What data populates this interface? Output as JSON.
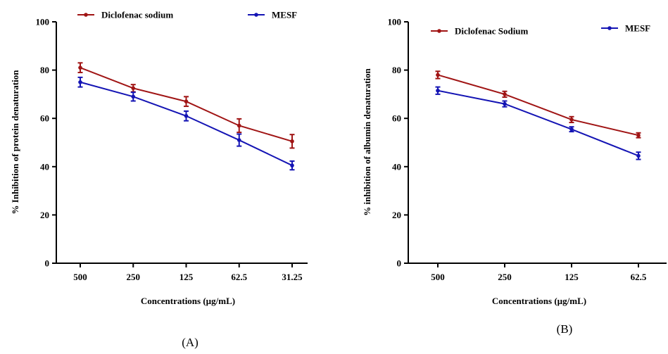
{
  "chart_data": [
    {
      "type": "line",
      "panel_label": "(A)",
      "xlabel": "Concentrations (µg/mL)",
      "ylabel": "% Inhibition of protein denaturation",
      "categories": [
        "500",
        "250",
        "125",
        "62.5",
        "31.25"
      ],
      "ylim": [
        0,
        100
      ],
      "yticks": [
        "0",
        "20",
        "40",
        "60",
        "80",
        "100"
      ],
      "grid": false,
      "legend_position": "top",
      "series": [
        {
          "name": "Diclofenac sodium",
          "color": "#A01414",
          "values": [
            81,
            72.5,
            67,
            57,
            50.5
          ],
          "errors": [
            2.0,
            1.5,
            2.0,
            2.8,
            2.8
          ]
        },
        {
          "name": "MESF",
          "color": "#1414B4",
          "values": [
            75,
            69,
            61,
            51,
            40.5
          ],
          "errors": [
            2.0,
            1.8,
            2.0,
            2.5,
            1.8
          ]
        }
      ]
    },
    {
      "type": "line",
      "panel_label": "(B)",
      "xlabel": "Concentrations (µg/mL)",
      "ylabel": "%  inhibition of albumin denaturation",
      "categories": [
        "500",
        "250",
        "125",
        "62.5"
      ],
      "ylim": [
        0,
        100
      ],
      "yticks": [
        "0",
        "20",
        "40",
        "60",
        "80",
        "100"
      ],
      "grid": false,
      "legend_position": "top",
      "series": [
        {
          "name": "Diclofenac Sodium",
          "color": "#A01414",
          "values": [
            78,
            70,
            59.5,
            53
          ],
          "errors": [
            1.5,
            1.2,
            1.2,
            1.0
          ]
        },
        {
          "name": "MESF",
          "color": "#1414B4",
          "values": [
            71.5,
            66,
            55.5,
            44.5
          ],
          "errors": [
            1.5,
            1.2,
            1.0,
            1.5
          ]
        }
      ]
    }
  ]
}
